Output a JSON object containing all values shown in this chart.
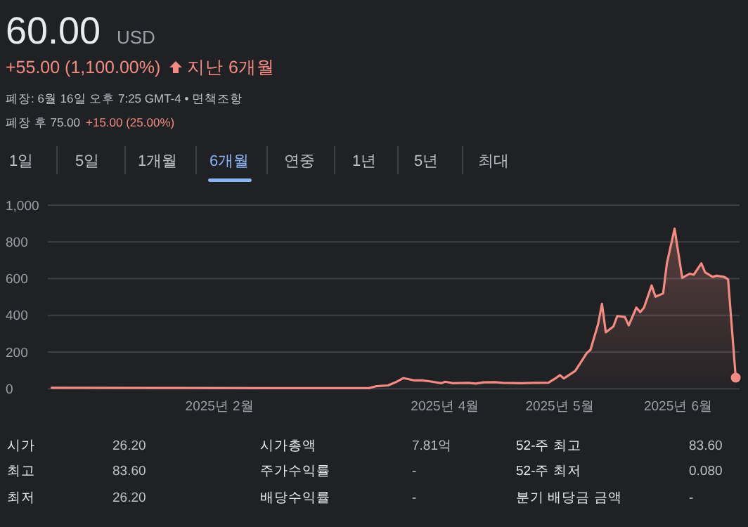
{
  "chart_data": {
    "type": "area",
    "title": "60.00",
    "subtitle": "+55.00 (1,100.00%)",
    "annotations": [
      "USD",
      "지난 6개월",
      "폐장: 6월 16일 오후 7:25 GMT-4 • 면책조항",
      "폐장 후 75.00",
      "+15.00 (25.00%)",
      "1일",
      "5일",
      "1개월",
      "6개월",
      "연중",
      "1년",
      "5년",
      "최대",
      "시가",
      "26.20",
      "시가총액",
      "7.81억",
      "52-주 최고",
      "83.60",
      "최고",
      "83.60",
      "주가수익률",
      "-",
      "52-주 최저",
      "0.080",
      "최저",
      "26.20",
      "배당수익률",
      "-",
      "분기 배당금 금액",
      "-"
    ],
    "x": [
      "2024-12-19",
      "2025-01-15",
      "2025-02-14",
      "2025-03-12",
      "2025-03-14",
      "2025-03-17",
      "2025-03-19",
      "2025-03-21",
      "2025-03-24",
      "2025-03-26",
      "2025-03-28",
      "2025-03-31",
      "2025-04-01",
      "2025-04-03",
      "2025-04-07",
      "2025-04-09",
      "2025-04-11",
      "2025-04-14",
      "2025-04-16",
      "2025-04-21",
      "2025-04-24",
      "2025-04-28",
      "2025-04-30",
      "2025-05-01",
      "2025-05-02",
      "2025-05-05",
      "2025-05-07",
      "2025-05-08",
      "2025-05-09",
      "2025-05-11",
      "2025-05-12",
      "2025-05-13",
      "2025-05-15",
      "2025-05-16",
      "2025-05-18",
      "2025-05-19",
      "2025-05-21",
      "2025-05-22",
      "2025-05-23",
      "2025-05-25",
      "2025-05-26",
      "2025-05-28",
      "2025-05-29",
      "2025-05-31",
      "2025-06-01",
      "2025-06-02",
      "2025-06-04",
      "2025-06-05",
      "2025-06-07",
      "2025-06-08",
      "2025-06-10",
      "2025-06-11",
      "2025-06-13",
      "2025-06-14",
      "2025-06-16"
    ],
    "series": [
      {
        "color": "#f28b82",
        "values": [
          5,
          4,
          3,
          3,
          14,
          18,
          35,
          58,
          45,
          45,
          40,
          30,
          38,
          30,
          32,
          28,
          35,
          36,
          32,
          30,
          32,
          33,
          59,
          74,
          56,
          97,
          161,
          194,
          212,
          353,
          463,
          307,
          340,
          396,
          391,
          345,
          442,
          417,
          442,
          563,
          501,
          519,
          685,
          872,
          737,
          604,
          627,
          621,
          683,
          634,
          609,
          616,
          609,
          596,
          60
        ]
      }
    ],
    "xlim": [
      "2024-12-18",
      "2025-06-17"
    ],
    "xticks": [
      {
        "value": "2025-02-01",
        "label": "2025년 2월"
      },
      {
        "value": "2025-04-01",
        "label": "2025년 4월"
      },
      {
        "value": "2025-05-01",
        "label": "2025년 5월"
      },
      {
        "value": "2025-06-01",
        "label": "2025년 6월"
      }
    ],
    "ylim": [
      0,
      1000
    ],
    "yticks": [
      0,
      200,
      400,
      600,
      800,
      {
        "value": 1000,
        "label": "1,000"
      }
    ],
    "grid": "y"
  }
}
